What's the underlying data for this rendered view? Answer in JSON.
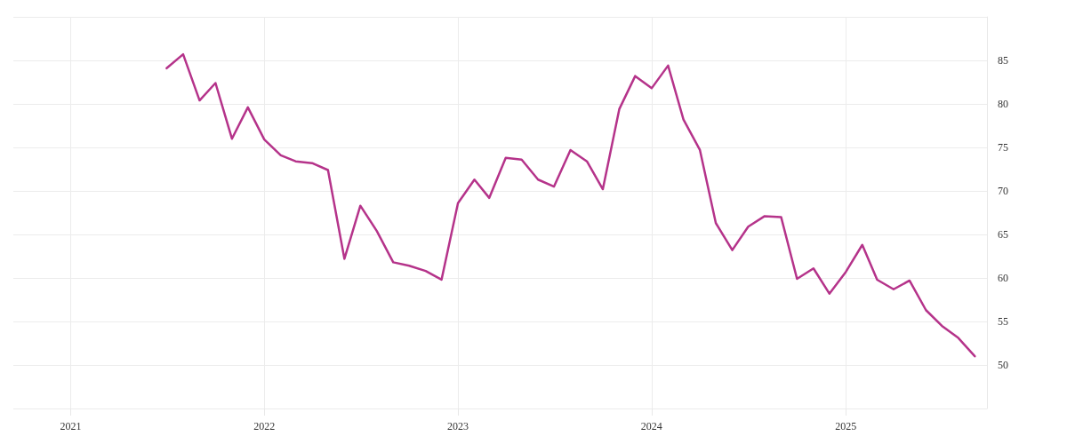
{
  "chart_data": {
    "type": "line",
    "x": [
      "2021-07",
      "2021-08",
      "2021-09",
      "2021-10",
      "2021-11",
      "2021-12",
      "2022-01",
      "2022-02",
      "2022-03",
      "2022-04",
      "2022-05",
      "2022-06",
      "2022-07",
      "2022-08",
      "2022-09",
      "2022-10",
      "2022-11",
      "2022-12",
      "2023-01",
      "2023-02",
      "2023-03",
      "2023-04",
      "2023-05",
      "2023-06",
      "2023-07",
      "2023-08",
      "2023-09",
      "2023-10",
      "2023-11",
      "2023-12",
      "2024-01",
      "2024-02",
      "2024-03",
      "2024-04",
      "2024-05",
      "2024-06",
      "2024-07",
      "2024-08",
      "2024-09",
      "2024-10",
      "2024-11",
      "2024-12",
      "2025-01",
      "2025-02",
      "2025-03",
      "2025-04",
      "2025-05",
      "2025-06",
      "2025-07",
      "2025-08",
      "2025-09"
    ],
    "series": [
      {
        "color": "#b5338a",
        "values": [
          84.1,
          85.7,
          80.4,
          82.4,
          76.0,
          79.6,
          75.9,
          74.1,
          73.4,
          73.2,
          72.4,
          62.2,
          68.3,
          65.4,
          61.8,
          61.4,
          60.8,
          59.8,
          68.6,
          71.3,
          69.2,
          73.8,
          73.6,
          71.3,
          70.5,
          74.7,
          73.4,
          70.2,
          79.4,
          83.2,
          81.8,
          84.4,
          78.2,
          74.7,
          66.3,
          63.2,
          65.9,
          67.1,
          67.0,
          59.9,
          61.1,
          58.2,
          60.7,
          63.8,
          59.8,
          58.7,
          59.7,
          56.3,
          54.5,
          53.1,
          51.0
        ]
      }
    ],
    "xlim": [
      "2020-09-15",
      "2025-09-24"
    ],
    "xticks": [
      "2021",
      "2022",
      "2023",
      "2024",
      "2025"
    ],
    "ylim": [
      45,
      90
    ],
    "yticks": [
      {
        "value": 45,
        "label": null
      },
      50,
      55,
      60,
      65,
      70,
      75,
      80,
      85,
      {
        "value": 90,
        "label": null
      }
    ],
    "grid": true,
    "marker": "none",
    "line_style": "solid"
  }
}
